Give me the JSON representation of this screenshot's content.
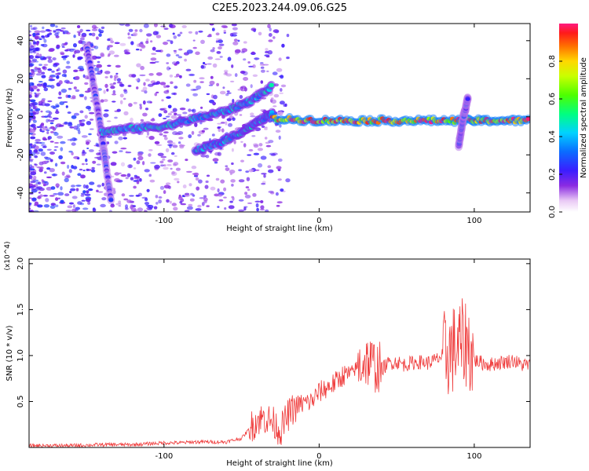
{
  "title": "C2E5.2023.244.09.06.G25",
  "colors": {
    "snr_line": "#ef3b3b",
    "axes": "#000000"
  },
  "chart_data": [
    {
      "type": "heatmap",
      "xlabel": "Height of straight line (km)",
      "ylabel": "Frequency (Hz)",
      "xlim": [
        -187,
        136
      ],
      "ylim": [
        -50,
        49
      ],
      "xticks": [
        -100,
        0,
        100
      ],
      "xtick_labels": [
        "-100",
        "0",
        "100"
      ],
      "yticks": [
        -40,
        -20,
        0,
        20,
        40
      ],
      "ytick_labels": [
        "-40",
        "-20",
        "0",
        "20",
        "40"
      ],
      "colorbar": {
        "label": "Normalized spectral amplitude",
        "range": [
          0,
          1
        ],
        "ticks": [
          0.0,
          0.2,
          0.4,
          0.6,
          0.8
        ],
        "tick_labels": [
          "0.0",
          "0.2",
          "0.4",
          "0.6",
          "0.8"
        ],
        "colormap": "rainbow"
      },
      "features": [
        {
          "name": "steep descending streak",
          "points": [
            [
              -150,
              38
            ],
            [
              -145,
              15
            ],
            [
              -141,
              -5
            ],
            [
              -138,
              -22
            ],
            [
              -134,
              -45
            ]
          ],
          "amplitude": 0.25
        },
        {
          "name": "upper rising branch",
          "points": [
            [
              -140,
              -8
            ],
            [
              -120,
              -6
            ],
            [
              -100,
              -5
            ],
            [
              -80,
              -1
            ],
            [
              -60,
              3
            ],
            [
              -45,
              8
            ],
            [
              -30,
              16
            ]
          ],
          "amplitude": 0.45
        },
        {
          "name": "lower rising branch",
          "points": [
            [
              -80,
              -18
            ],
            [
              -65,
              -14
            ],
            [
              -50,
              -8
            ],
            [
              -40,
              -3
            ],
            [
              -30,
              2
            ]
          ],
          "amplitude": 0.45
        },
        {
          "name": "main band",
          "points": [
            [
              -30,
              -1
            ],
            [
              0,
              -2
            ],
            [
              30,
              -2
            ],
            [
              60,
              -2
            ],
            [
              90,
              -2
            ],
            [
              110,
              -2
            ],
            [
              136,
              -2
            ]
          ],
          "amplitude": 0.95
        },
        {
          "name": "spike near 95 km",
          "points": [
            [
              90,
              -15
            ],
            [
              93,
              0
            ],
            [
              96,
              10
            ]
          ],
          "amplitude": 0.3
        }
      ]
    },
    {
      "type": "line",
      "xlabel": "Height of straight line (km)",
      "ylabel": "SNR (10 * v/v)",
      "y_multiplier": "(x10^4)",
      "xlim": [
        -187,
        136
      ],
      "ylim": [
        0,
        2.05
      ],
      "xticks": [
        -100,
        0,
        100
      ],
      "xtick_labels": [
        "-100",
        "0",
        "100"
      ],
      "yticks": [
        0.5,
        1.0,
        1.5,
        2.0
      ],
      "ytick_labels": [
        "0.5",
        "1.0",
        "1.5",
        "2.0"
      ],
      "series": [
        {
          "x": [
            -187,
            -160,
            -140,
            -120,
            -110,
            -100,
            -90,
            -80,
            -70,
            -60,
            -50,
            -45,
            -40,
            -35,
            -30,
            -25,
            -20,
            -15,
            -10,
            -5,
            0,
            5,
            10,
            15,
            20,
            25,
            30,
            35,
            40,
            45,
            50,
            55,
            60,
            65,
            70,
            75,
            80,
            85,
            90,
            95,
            100,
            105,
            110,
            115,
            120,
            125,
            130,
            136
          ],
          "y": [
            0.02,
            0.02,
            0.03,
            0.03,
            0.04,
            0.05,
            0.05,
            0.06,
            0.06,
            0.06,
            0.1,
            0.2,
            0.3,
            0.32,
            0.28,
            0.18,
            0.35,
            0.45,
            0.48,
            0.5,
            0.6,
            0.65,
            0.7,
            0.78,
            0.8,
            0.88,
            0.95,
            0.9,
            0.85,
            0.92,
            0.93,
            0.9,
            0.92,
            0.93,
            0.92,
            0.95,
            1.0,
            1.05,
            1.1,
            1.15,
            0.95,
            0.92,
            0.9,
            0.92,
            0.93,
            0.95,
            0.9,
            0.9
          ]
        }
      ]
    }
  ]
}
